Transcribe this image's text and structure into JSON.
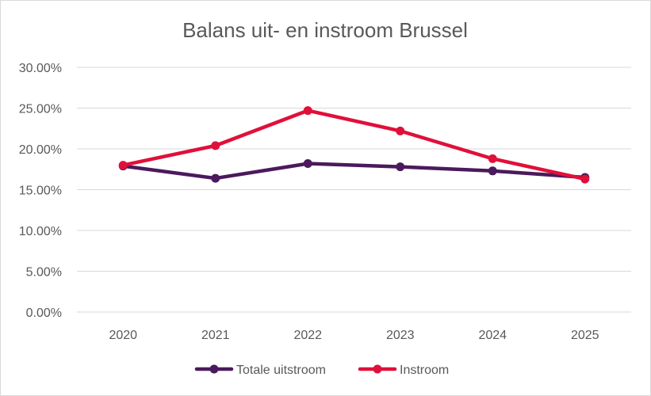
{
  "chart_data": {
    "type": "line",
    "title": "Balans uit- en instroom Brussel",
    "xlabel": "",
    "ylabel": "",
    "categories": [
      "2020",
      "2021",
      "2022",
      "2023",
      "2024",
      "2025"
    ],
    "ylim": [
      0,
      0.3
    ],
    "y_ticks": [
      0,
      0.05,
      0.1,
      0.15,
      0.2,
      0.25,
      0.3
    ],
    "y_tick_labels": [
      "0.00%",
      "5.00%",
      "10.00%",
      "15.00%",
      "20.00%",
      "25.00%",
      "30.00%"
    ],
    "grid": true,
    "legend_position": "bottom",
    "series": [
      {
        "name": "Totale uitstroom",
        "color": "#4a1a5c",
        "values": [
          0.179,
          0.164,
          0.182,
          0.178,
          0.173,
          0.165
        ]
      },
      {
        "name": "Instroom",
        "color": "#e0103a",
        "values": [
          0.18,
          0.204,
          0.247,
          0.222,
          0.188,
          0.163
        ]
      }
    ]
  }
}
